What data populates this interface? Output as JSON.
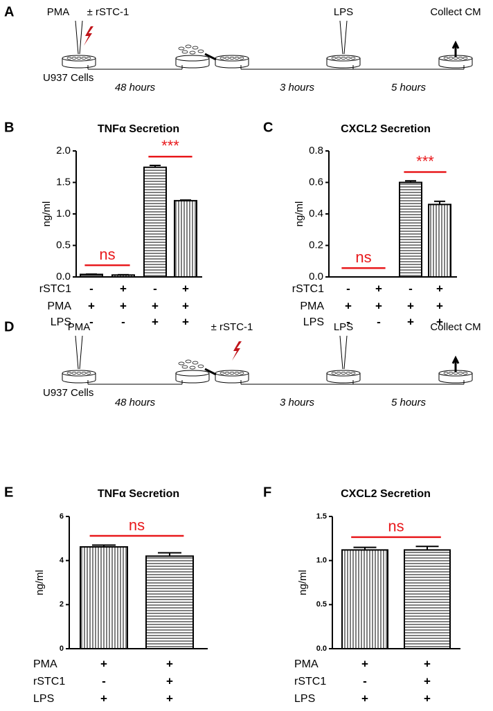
{
  "timelines": [
    {
      "label": "A",
      "cells": "U937 Cells",
      "steps": [
        [
          "PMA",
          "± rSTC-1"
        ],
        [],
        [],
        [
          "LPS"
        ],
        [
          "Collect CM"
        ]
      ],
      "durations": [
        "48 hours",
        "3 hours",
        "5 hours"
      ]
    },
    {
      "label": "D",
      "cells": "U937 Cells",
      "steps": [
        [
          "PMA"
        ],
        [],
        [
          "± rSTC-1"
        ],
        [
          "LPS"
        ],
        [
          "Collect CM"
        ]
      ],
      "durations": [
        "48 hours",
        "3 hours",
        "5 hours"
      ]
    }
  ],
  "chart_data": [
    {
      "type": "bar",
      "panel_label": "B",
      "title": "TNFα Secretion",
      "y_label": "ng/ml",
      "values": [
        0.04,
        0.03,
        1.74,
        1.21
      ],
      "errors": [
        0.005,
        0.005,
        0.03,
        0.01
      ],
      "patterns": [
        "horizontal",
        "vertical",
        "horizontal",
        "vertical"
      ],
      "ylim": [
        0,
        2
      ],
      "yticks": [
        {
          "value": 0,
          "label": "0.0"
        },
        0.5,
        {
          "value": 1,
          "label": "1.0"
        },
        1.5,
        {
          "value": 2,
          "label": "2.0"
        }
      ],
      "conditions": [
        {
          "name": "rSTC1",
          "values": [
            "-",
            "+",
            "-",
            "+"
          ]
        },
        {
          "name": "PMA",
          "values": [
            "+",
            "+",
            "+",
            "+"
          ]
        },
        {
          "name": "LPS",
          "values": [
            "-",
            "-",
            "+",
            "+"
          ]
        }
      ],
      "annotations": [
        {
          "text": "ns",
          "from": 0,
          "to": 1
        },
        {
          "text": "***",
          "from": 2,
          "to": 3
        }
      ],
      "annotation_color": "#e8191c"
    },
    {
      "type": "bar",
      "panel_label": "C",
      "title": "CXCL2 Secretion",
      "y_label": "ng/ml",
      "values": [
        0,
        0,
        0.6,
        0.46
      ],
      "errors": [
        0,
        0,
        0.01,
        0.02
      ],
      "patterns": [
        "horizontal",
        "vertical",
        "horizontal",
        "vertical"
      ],
      "ylim": [
        0,
        0.8
      ],
      "yticks": [
        {
          "value": 0,
          "label": "0.0"
        },
        0.2,
        0.4,
        0.6,
        0.8
      ],
      "conditions": [
        {
          "name": "rSTC1",
          "values": [
            "-",
            "+",
            "-",
            "+"
          ]
        },
        {
          "name": "PMA",
          "values": [
            "+",
            "+",
            "+",
            "+"
          ]
        },
        {
          "name": "LPS",
          "values": [
            "-",
            "-",
            "+",
            "+"
          ]
        }
      ],
      "annotations": [
        {
          "text": "ns",
          "from": 0,
          "to": 1
        },
        {
          "text": "***",
          "from": 2,
          "to": 3
        }
      ],
      "annotation_color": "#e8191c"
    },
    {
      "type": "bar",
      "panel_label": "E",
      "title": "TNFα Secretion",
      "y_label": "ng/ml",
      "values": [
        4.62,
        4.2
      ],
      "errors": [
        0.08,
        0.15
      ],
      "patterns": [
        "vertical",
        "horizontal"
      ],
      "ylim": [
        0,
        6
      ],
      "yticks": [
        0,
        2,
        4,
        6
      ],
      "conditions": [
        {
          "name": "PMA",
          "values": [
            "+",
            "+"
          ]
        },
        {
          "name": "rSTC1",
          "values": [
            "-",
            "+"
          ]
        },
        {
          "name": "LPS",
          "values": [
            "+",
            "+"
          ]
        }
      ],
      "annotations": [
        {
          "text": "ns",
          "from": 0,
          "to": 1
        }
      ],
      "annotation_color": "#e8191c"
    },
    {
      "type": "bar",
      "panel_label": "F",
      "title": "CXCL2 Secretion",
      "y_label": "ng/ml",
      "values": [
        1.12,
        1.12
      ],
      "errors": [
        0.03,
        0.04
      ],
      "patterns": [
        "vertical",
        "horizontal"
      ],
      "ylim": [
        0,
        1.5
      ],
      "yticks": [
        {
          "value": 0,
          "label": "0.0"
        },
        0.5,
        {
          "value": 1,
          "label": "1.0"
        },
        1.5
      ],
      "conditions": [
        {
          "name": "PMA",
          "values": [
            "+",
            "+"
          ]
        },
        {
          "name": "rSTC1",
          "values": [
            "-",
            "+"
          ]
        },
        {
          "name": "LPS",
          "values": [
            "+",
            "+"
          ]
        }
      ],
      "annotations": [
        {
          "text": "ns",
          "from": 0,
          "to": 1
        }
      ],
      "annotation_color": "#e8191c"
    }
  ]
}
